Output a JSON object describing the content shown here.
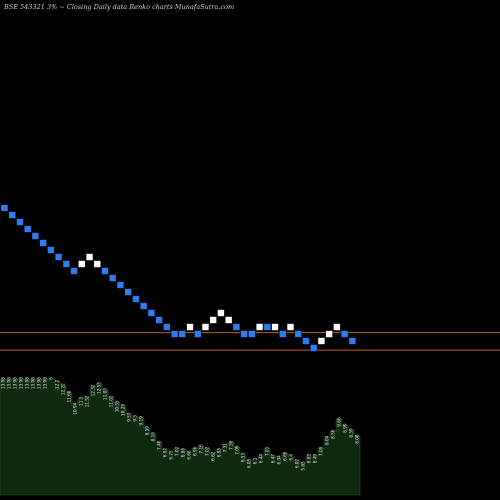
{
  "header": {
    "symbol": "BSE 543321",
    "change": "3%",
    "caption": "Closing Daily data",
    "chart_word": "Renko",
    "site": "charts MunafaSutra.com"
  },
  "colors": {
    "background": "#000000",
    "up_brick": "#ffffff",
    "down_brick": "#2f7cf0",
    "reference_line": "#b8622a",
    "volume_area": "#0e2a0e",
    "label_text": "#e8e8e8"
  },
  "chart_data": {
    "type": "renko",
    "title": "",
    "bricks": [
      {
        "n": 0,
        "d": "down"
      },
      {
        "n": 1,
        "d": "down"
      },
      {
        "n": 2,
        "d": "down"
      },
      {
        "n": 3,
        "d": "down"
      },
      {
        "n": 4,
        "d": "down"
      },
      {
        "n": 5,
        "d": "down"
      },
      {
        "n": 6,
        "d": "down"
      },
      {
        "n": 7,
        "d": "down"
      },
      {
        "n": 8,
        "d": "down"
      },
      {
        "n": 9,
        "d": "down"
      },
      {
        "n": 10,
        "d": "up"
      },
      {
        "n": 11,
        "d": "up"
      },
      {
        "n": 12,
        "d": "up"
      },
      {
        "n": 13,
        "d": "down"
      },
      {
        "n": 14,
        "d": "down"
      },
      {
        "n": 15,
        "d": "down"
      },
      {
        "n": 16,
        "d": "down"
      },
      {
        "n": 17,
        "d": "down"
      },
      {
        "n": 18,
        "d": "down"
      },
      {
        "n": 19,
        "d": "down"
      },
      {
        "n": 20,
        "d": "down"
      },
      {
        "n": 21,
        "d": "down"
      },
      {
        "n": 22,
        "d": "down"
      },
      {
        "n": 23,
        "d": "down"
      },
      {
        "n": 24,
        "d": "up"
      },
      {
        "n": 25,
        "d": "down"
      },
      {
        "n": 26,
        "d": "up"
      },
      {
        "n": 27,
        "d": "up"
      },
      {
        "n": 28,
        "d": "up"
      },
      {
        "n": 29,
        "d": "up"
      },
      {
        "n": 30,
        "d": "down"
      },
      {
        "n": 31,
        "d": "down"
      },
      {
        "n": 32,
        "d": "down"
      },
      {
        "n": 33,
        "d": "up"
      },
      {
        "n": 34,
        "d": "down"
      },
      {
        "n": 35,
        "d": "up"
      },
      {
        "n": 36,
        "d": "down"
      },
      {
        "n": 37,
        "d": "up"
      },
      {
        "n": 38,
        "d": "down"
      },
      {
        "n": 39,
        "d": "down"
      },
      {
        "n": 40,
        "d": "down"
      },
      {
        "n": 41,
        "d": "up"
      },
      {
        "n": 42,
        "d": "up"
      },
      {
        "n": 43,
        "d": "up"
      },
      {
        "n": 44,
        "d": "down"
      },
      {
        "n": 45,
        "d": "down"
      }
    ],
    "brick_levels": [
      23,
      22,
      21,
      20,
      19,
      18,
      17,
      16,
      15,
      14,
      15,
      16,
      15,
      14,
      13,
      12,
      11,
      10,
      9,
      8,
      7,
      6,
      5,
      5,
      6,
      5,
      6,
      7,
      8,
      7,
      6,
      5,
      5,
      6,
      6,
      6,
      5,
      6,
      5,
      4,
      3,
      4,
      5,
      6,
      5,
      4
    ],
    "reference_levels": [
      5.7,
      3.2
    ],
    "volume_labels": [
      "13.98",
      "13.98",
      "13.98",
      "13.98",
      "13.98",
      "13.98",
      "13.98",
      "13.98",
      "6",
      "12.2",
      "12.22",
      "11.68",
      "10.94",
      "11.5",
      "11.52",
      "12.32",
      "12.55",
      "11.83",
      "11.02",
      "10.55",
      "10.29",
      "9.53",
      "9.3",
      "9.19",
      "8.59",
      "8.16",
      "7.46",
      "6.92",
      "6.73",
      "7.02",
      "6.86",
      "6.68",
      "6.96",
      "7.16",
      "7.02",
      "6.62",
      "6.95",
      "7.31",
      "7.56",
      "7.09",
      "6.53",
      "6.05",
      "6.1",
      "6.44",
      "7.01",
      "6.47",
      "6.34",
      "6.66",
      "6.4",
      "6.02",
      "5.83",
      "6.63",
      "6.49",
      "7.09",
      "8.04",
      "8.56",
      "9.66",
      "8.99",
      "8.59",
      "8.08"
    ],
    "volume_levels": [
      95,
      95,
      95,
      95,
      95,
      95,
      95,
      95,
      95,
      93,
      90,
      84,
      74,
      79,
      80,
      89,
      91,
      86,
      80,
      76,
      73,
      66,
      64,
      63,
      55,
      50,
      43,
      37,
      35,
      38,
      37,
      35,
      38,
      40,
      38,
      34,
      37,
      41,
      43,
      39,
      33,
      28,
      29,
      32,
      38,
      32,
      31,
      34,
      32,
      28,
      26,
      32,
      32,
      38,
      47,
      52,
      62,
      57,
      53,
      48
    ]
  }
}
